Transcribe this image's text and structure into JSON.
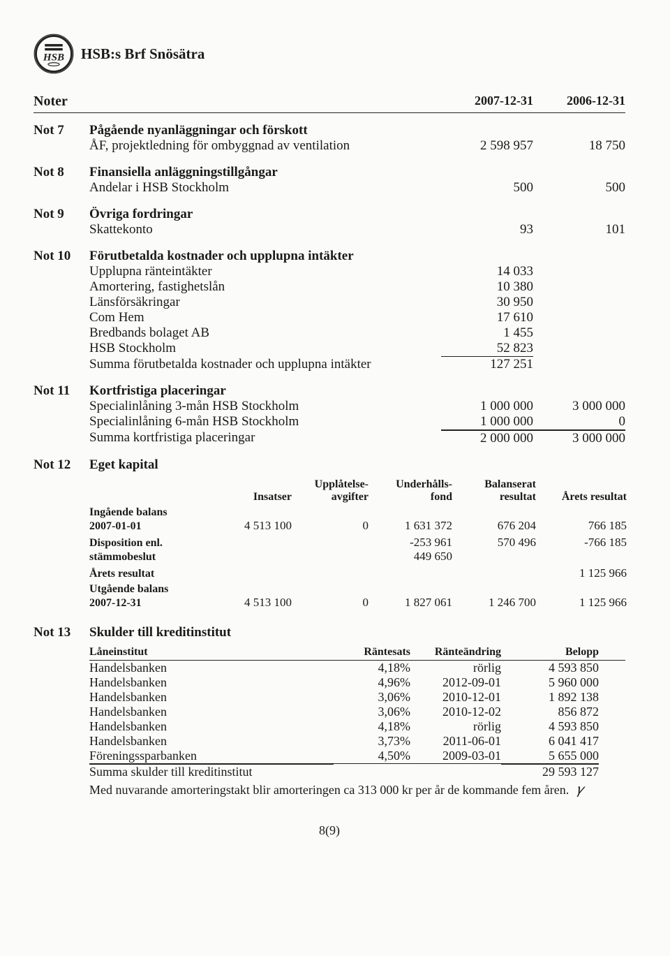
{
  "org_title": "HSB:s Brf Snösätra",
  "noter_label": "Noter",
  "year1": "2007-12-31",
  "year2": "2006-12-31",
  "not7": {
    "num": "Not 7",
    "heading": "Pågående nyanläggningar och förskott",
    "line1_label": "ÅF, projektledning för ombyggnad av ventilation",
    "line1_v1": "2 598 957",
    "line1_v2": "18 750"
  },
  "not8": {
    "num": "Not 8",
    "heading": "Finansiella anläggningstillgångar",
    "line1_label": "Andelar i HSB Stockholm",
    "line1_v1": "500",
    "line1_v2": "500"
  },
  "not9": {
    "num": "Not 9",
    "heading": "Övriga fordringar",
    "line1_label": "Skattekonto",
    "line1_v1": "93",
    "line1_v2": "101"
  },
  "not10": {
    "num": "Not 10",
    "heading": "Förutbetalda kostnader och upplupna intäkter",
    "rows": [
      {
        "label": "Upplupna ränteintäkter",
        "v1": "14 033"
      },
      {
        "label": "Amortering, fastighetslån",
        "v1": "10 380"
      },
      {
        "label": "Länsförsäkringar",
        "v1": "30 950"
      },
      {
        "label": "Com Hem",
        "v1": "17 610"
      },
      {
        "label": "Bredbands bolaget AB",
        "v1": "1 455"
      },
      {
        "label": "HSB Stockholm",
        "v1": "52 823"
      }
    ],
    "sum_label": "Summa förutbetalda kostnader och upplupna intäkter",
    "sum_v1": "127 251"
  },
  "not11": {
    "num": "Not 11",
    "heading": "Kortfristiga placeringar",
    "rows": [
      {
        "label": "Specialinlåning 3-mån HSB Stockholm",
        "v1": "1 000 000",
        "v2": "3 000 000"
      },
      {
        "label": "Specialinlåning 6-mån HSB Stockholm",
        "v1": "1 000 000",
        "v2": "0"
      }
    ],
    "sum_label": "Summa kortfristiga placeringar",
    "sum_v1": "2 000 000",
    "sum_v2": "3 000 000"
  },
  "not12": {
    "num": "Not 12",
    "heading": "Eget kapital",
    "cols": {
      "c1a": "Insatser",
      "c2a": "Upplåtelse-",
      "c2b": "avgifter",
      "c3a": "Underhålls-",
      "c3b": "fond",
      "c4a": "Balanserat",
      "c4b": "resultat",
      "c5a": "Årets resultat"
    },
    "r1_label_a": "Ingående balans",
    "r1_label_b": "2007-01-01",
    "r1": {
      "c1": "4 513 100",
      "c2": "0",
      "c3": "1 631 372",
      "c4": "676 204",
      "c5": "766 185"
    },
    "r2_label_a": "Disposition enl.",
    "r2_label_b": "stämmobeslut",
    "r2_line1": {
      "c3": "-253 961",
      "c4": "570 496",
      "c5": "-766 185"
    },
    "r2_line2": {
      "c3": "449 650"
    },
    "r3_label": "Årets resultat",
    "r3": {
      "c5": "1 125 966"
    },
    "r4_label_a": "Utgående balans",
    "r4_label_b": "2007-12-31",
    "r4": {
      "c1": "4 513 100",
      "c2": "0",
      "c3": "1 827 061",
      "c4": "1 246 700",
      "c5": "1 125 966"
    }
  },
  "not13": {
    "num": "Not 13",
    "heading": "Skulder till kreditinstitut",
    "cols": {
      "c0": "Låneinstitut",
      "c1": "Räntesats",
      "c2": "Ränteändring",
      "c3": "Belopp"
    },
    "rows": [
      {
        "c0": "Handelsbanken",
        "c1": "4,18%",
        "c2": "rörlig",
        "c3": "4 593 850"
      },
      {
        "c0": "Handelsbanken",
        "c1": "4,96%",
        "c2": "2012-09-01",
        "c3": "5 960 000"
      },
      {
        "c0": "Handelsbanken",
        "c1": "3,06%",
        "c2": "2010-12-01",
        "c3": "1 892 138"
      },
      {
        "c0": "Handelsbanken",
        "c1": "3,06%",
        "c2": "2010-12-02",
        "c3": "856 872"
      },
      {
        "c0": "Handelsbanken",
        "c1": "4,18%",
        "c2": "rörlig",
        "c3": "4 593 850"
      },
      {
        "c0": "Handelsbanken",
        "c1": "3,73%",
        "c2": "2011-06-01",
        "c3": "6 041 417"
      },
      {
        "c0": "Föreningssparbanken",
        "c1": "4,50%",
        "c2": "2009-03-01",
        "c3": "5 655 000"
      }
    ],
    "sum_label": "Summa skulder till kreditinstitut",
    "sum_v": "29 593 127",
    "footnote": "Med nuvarande amorteringstakt blir amorteringen ca 313 000 kr per år de kommande fem åren."
  },
  "page_number": "8(9)"
}
